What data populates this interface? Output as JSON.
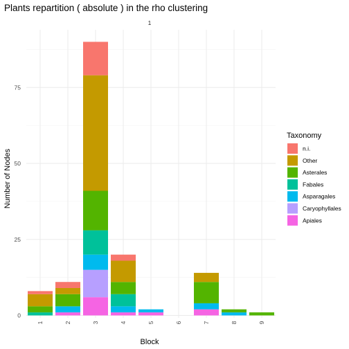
{
  "chart_data": {
    "type": "bar",
    "stacked": true,
    "title": "Plants repartition ( absolute ) in the rho clustering",
    "facet_label": "1",
    "xlabel": "Block",
    "ylabel": "Number of Nodes",
    "categories": [
      "1",
      "2",
      "3",
      "4",
      "5",
      "6",
      "7",
      "8",
      "9"
    ],
    "y_ticks": [
      0,
      25,
      50,
      75
    ],
    "ylim": [
      0,
      90
    ],
    "grid": true,
    "legend": {
      "title": "Taxonomy",
      "position": "right"
    },
    "series": [
      {
        "name": "Apiales",
        "color": "#F564E3",
        "values": [
          0,
          1,
          6,
          1,
          1,
          0,
          2,
          0,
          0
        ]
      },
      {
        "name": "Caryophyllales",
        "color": "#B79FFF",
        "values": [
          0,
          0,
          9,
          0,
          0,
          0,
          0,
          0,
          0
        ]
      },
      {
        "name": "Asparagales",
        "color": "#00BAEE",
        "values": [
          0,
          2,
          5,
          2,
          1,
          0,
          2,
          1,
          0
        ]
      },
      {
        "name": "Fabales",
        "color": "#00C19A",
        "values": [
          1,
          0,
          8,
          4,
          0,
          0,
          0,
          0,
          0
        ]
      },
      {
        "name": "Asterales",
        "color": "#53B400",
        "values": [
          2,
          4,
          13,
          4,
          0,
          0,
          7,
          1,
          1
        ]
      },
      {
        "name": "Other",
        "color": "#C49A00",
        "values": [
          4,
          2,
          38,
          7,
          0,
          0,
          3,
          0,
          0
        ]
      },
      {
        "name": "n.i.",
        "color": "#F8766D",
        "values": [
          1,
          2,
          11,
          2,
          0,
          0,
          0,
          0,
          0
        ]
      }
    ],
    "legend_order": [
      "n.i.",
      "Other",
      "Asterales",
      "Fabales",
      "Asparagales",
      "Caryophyllales",
      "Apiales"
    ]
  }
}
